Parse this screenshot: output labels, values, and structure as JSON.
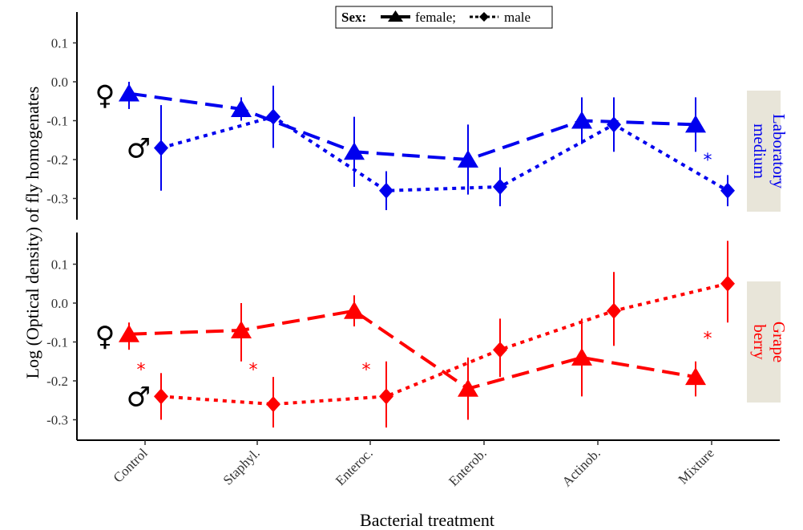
{
  "chart_data": {
    "type": "line",
    "xlabel": "Bacterial treatment",
    "ylabel": "Log (Optical density) of fly homogenates",
    "categories": [
      "Control",
      "Staphyl.",
      "Enteroc.",
      "Enterob.",
      "Actinob.",
      "Mixture"
    ],
    "yticks": [
      "0.1",
      "0.0",
      "-0.1",
      "-0.2",
      "-0.3"
    ],
    "ytick_values": [
      0.1,
      0.0,
      -0.1,
      -0.2,
      -0.3
    ],
    "ylim": [
      -0.34,
      0.17
    ],
    "legend": {
      "title": "Sex:",
      "female_label": "female;",
      "male_label": "male",
      "placement": "top-center"
    },
    "panels": [
      {
        "strip_line1": "Laboratory",
        "strip_line2": "medium",
        "color": "#0000ee",
        "series": [
          {
            "sex": "female",
            "values": [
              -0.03,
              -0.07,
              -0.18,
              -0.2,
              -0.1,
              -0.11
            ],
            "lower": [
              -0.07,
              -0.1,
              -0.27,
              -0.29,
              -0.16,
              -0.18
            ],
            "upper": [
              0.0,
              -0.04,
              -0.09,
              -0.11,
              -0.04,
              -0.04
            ]
          },
          {
            "sex": "male",
            "values": [
              -0.17,
              -0.09,
              -0.28,
              -0.27,
              -0.11,
              -0.28
            ],
            "lower": [
              -0.28,
              -0.17,
              -0.33,
              -0.32,
              -0.18,
              -0.32
            ],
            "upper": [
              -0.06,
              -0.01,
              -0.23,
              -0.22,
              -0.04,
              -0.24
            ]
          }
        ],
        "significance_marks": [
          "",
          "",
          "",
          "",
          "",
          "*"
        ]
      },
      {
        "strip_line1": "Grape",
        "strip_line2": "berry",
        "color": "#ff0000",
        "series": [
          {
            "sex": "female",
            "values": [
              -0.08,
              -0.07,
              -0.02,
              -0.22,
              -0.14,
              -0.19
            ],
            "lower": [
              -0.12,
              -0.15,
              -0.06,
              -0.3,
              -0.24,
              -0.24
            ],
            "upper": [
              -0.05,
              0.0,
              0.02,
              -0.14,
              -0.04,
              -0.15
            ]
          },
          {
            "sex": "male",
            "values": [
              -0.24,
              -0.26,
              -0.24,
              -0.12,
              -0.02,
              0.05
            ],
            "lower": [
              -0.3,
              -0.32,
              -0.32,
              -0.19,
              -0.11,
              -0.05
            ],
            "upper": [
              -0.18,
              -0.19,
              -0.15,
              -0.04,
              0.08,
              0.16
            ]
          }
        ],
        "significance_marks": [
          "*",
          "*",
          "*",
          "",
          "",
          "*"
        ]
      }
    ],
    "sex_symbols": {
      "female": "♀",
      "male": "♂"
    }
  }
}
